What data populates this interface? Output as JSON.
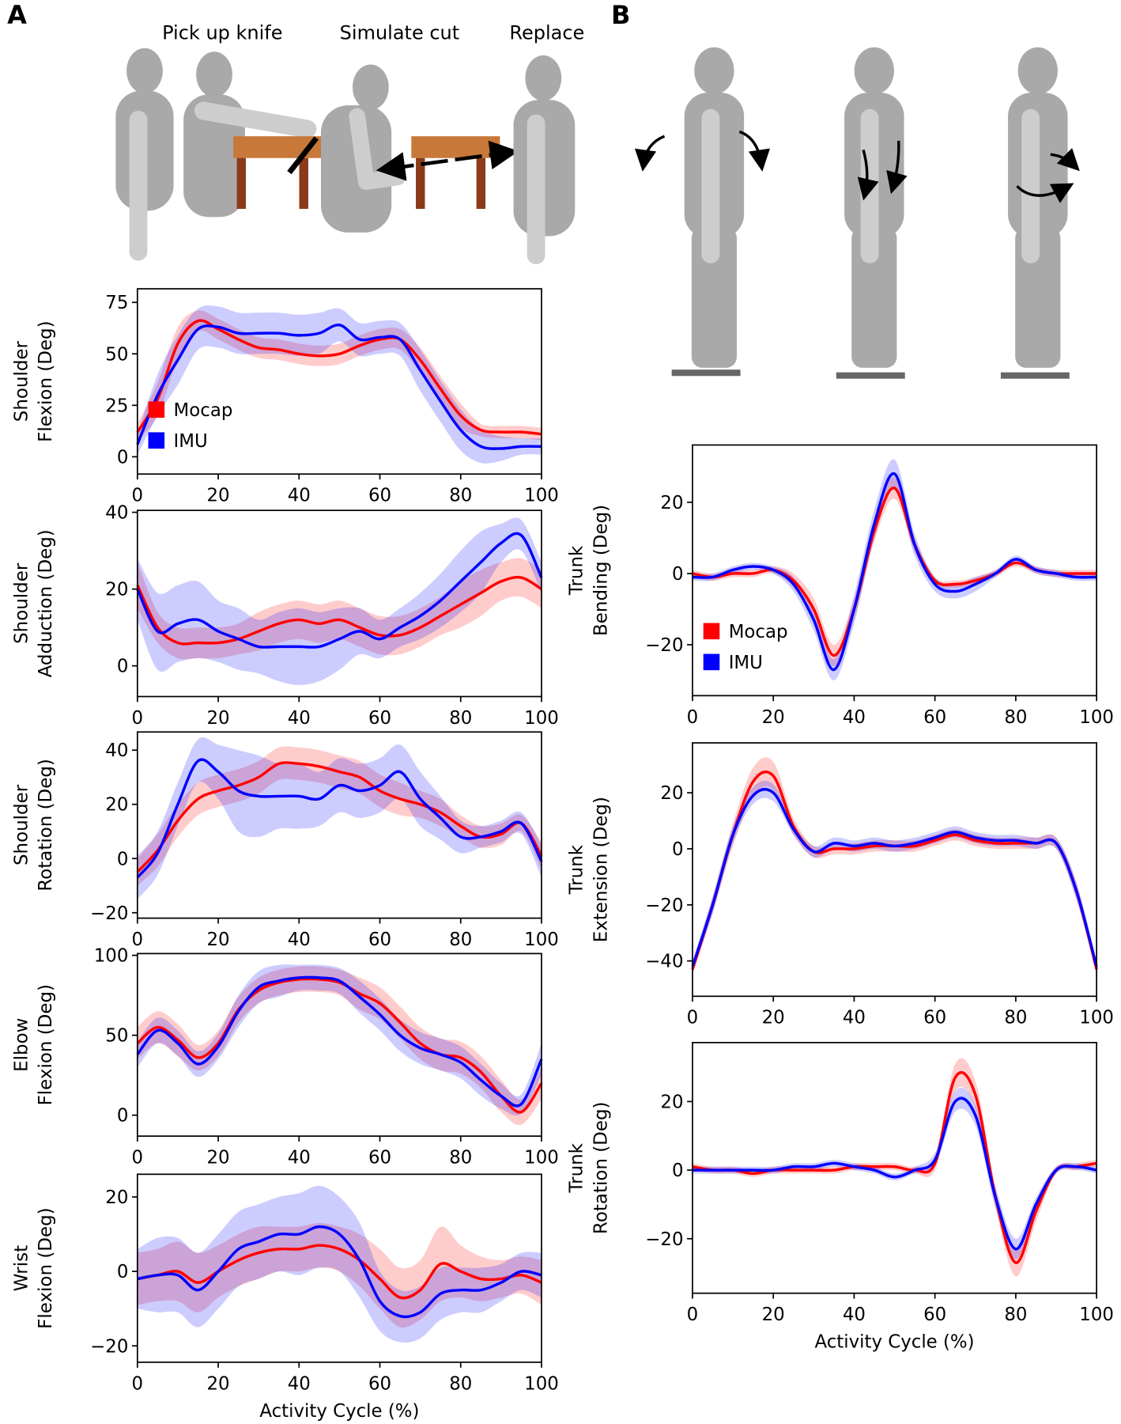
{
  "panel_labels": [
    "A",
    "B"
  ],
  "illustration": {
    "captions": [
      "Pick up knife",
      "Simulate cut",
      "Replace"
    ]
  },
  "chart_data": [
    {
      "type": "line",
      "ylabel": [
        "Shoulder",
        "Flexion (Deg)"
      ],
      "legend": "lower left",
      "x": [
        0,
        5,
        10,
        15,
        20,
        25,
        30,
        35,
        40,
        45,
        50,
        55,
        60,
        65,
        70,
        75,
        80,
        85,
        90,
        95,
        100
      ],
      "xlim": [
        0,
        100
      ],
      "xticks": [
        0,
        20,
        40,
        60,
        80,
        100
      ],
      "ylim": [
        -8.4,
        81.6
      ],
      "yticks": [
        0,
        25,
        50,
        75
      ],
      "series": [
        {
          "name": "Mocap",
          "color": "#ff0000",
          "values": [
            12,
            28,
            55,
            66,
            62,
            57,
            53,
            52,
            50,
            49,
            50,
            54,
            57,
            57,
            47,
            33,
            20,
            13,
            12,
            12,
            11
          ],
          "std": [
            4,
            8,
            8,
            5,
            5,
            5,
            5,
            5,
            5,
            5,
            5,
            5,
            5,
            5,
            6,
            6,
            6,
            3,
            3,
            3,
            3
          ]
        },
        {
          "name": "IMU",
          "color": "#0000ff",
          "values": [
            6,
            30,
            47,
            62,
            63,
            60,
            60,
            60,
            59,
            60,
            64,
            57,
            58,
            57,
            42,
            27,
            13,
            5,
            4,
            5,
            5
          ],
          "std": [
            5,
            10,
            12,
            10,
            10,
            10,
            10,
            10,
            10,
            10,
            8,
            8,
            8,
            8,
            10,
            10,
            10,
            8,
            6,
            4,
            4
          ]
        }
      ]
    },
    {
      "type": "line",
      "ylabel": [
        "Shoulder",
        "Adduction (Deg)"
      ],
      "x": [
        0,
        5,
        10,
        15,
        20,
        25,
        30,
        35,
        40,
        45,
        50,
        55,
        60,
        65,
        70,
        75,
        80,
        85,
        90,
        95,
        100
      ],
      "xlim": [
        0,
        100
      ],
      "xticks": [
        0,
        20,
        40,
        60,
        80,
        100
      ],
      "ylim": [
        -8,
        40.5
      ],
      "yticks": [
        0,
        20,
        40
      ],
      "series": [
        {
          "name": "Mocap",
          "color": "#ff0000",
          "values": [
            21,
            10,
            6,
            6,
            6,
            7,
            9,
            11,
            12,
            11,
            12,
            10,
            8,
            8,
            10,
            13,
            16,
            19,
            22,
            23,
            20
          ],
          "std": [
            6,
            4,
            4,
            4,
            4,
            4,
            5,
            5,
            5,
            5,
            5,
            5,
            5,
            5,
            5,
            5,
            6,
            6,
            5,
            5,
            5
          ]
        },
        {
          "name": "IMU",
          "color": "#0000ff",
          "values": [
            20,
            9,
            11,
            12,
            9,
            7,
            5,
            5,
            5,
            5,
            7,
            9,
            7,
            10,
            13,
            17,
            22,
            27,
            32,
            34,
            23
          ],
          "std": [
            8,
            10,
            10,
            10,
            8,
            8,
            7,
            9,
            10,
            9,
            8,
            6,
            5,
            5,
            6,
            7,
            8,
            8,
            5,
            4,
            4
          ]
        }
      ]
    },
    {
      "type": "line",
      "ylabel": [
        "Shoulder",
        "Rotation (Deg)"
      ],
      "x": [
        0,
        5,
        10,
        15,
        20,
        25,
        30,
        35,
        40,
        45,
        50,
        55,
        60,
        65,
        70,
        75,
        80,
        85,
        90,
        95,
        100
      ],
      "xlim": [
        0,
        100
      ],
      "xticks": [
        0,
        20,
        40,
        60,
        80,
        100
      ],
      "ylim": [
        -22,
        46.7
      ],
      "yticks": [
        {
          "value": -20,
          "label": "−20"
        },
        0,
        20,
        40
      ],
      "series": [
        {
          "name": "Mocap",
          "color": "#ff0000",
          "values": [
            -5,
            3,
            14,
            22,
            25,
            27,
            30,
            35,
            35,
            34,
            32,
            30,
            25,
            22,
            20,
            17,
            12,
            8,
            9,
            13,
            1
          ],
          "std": [
            5,
            6,
            6,
            6,
            6,
            6,
            6,
            6,
            6,
            6,
            6,
            6,
            6,
            6,
            5,
            5,
            4,
            4,
            4,
            3,
            5
          ]
        },
        {
          "name": "IMU",
          "color": "#0000ff",
          "values": [
            -7,
            2,
            20,
            36,
            32,
            25,
            23,
            23,
            23,
            22,
            27,
            25,
            27,
            32,
            22,
            15,
            8,
            8,
            10,
            13,
            -1
          ],
          "std": [
            8,
            8,
            8,
            8,
            10,
            15,
            15,
            12,
            12,
            10,
            10,
            10,
            10,
            10,
            10,
            8,
            6,
            4,
            4,
            4,
            6
          ]
        }
      ]
    },
    {
      "type": "line",
      "ylabel": [
        "Elbow",
        "Flexion (Deg)"
      ],
      "x": [
        0,
        5,
        10,
        15,
        20,
        25,
        30,
        35,
        40,
        45,
        50,
        55,
        60,
        65,
        70,
        75,
        80,
        85,
        90,
        95,
        100
      ],
      "xlim": [
        0,
        100
      ],
      "xticks": [
        0,
        20,
        40,
        60,
        80,
        100
      ],
      "ylim": [
        -13.1,
        101.1
      ],
      "yticks": [
        0,
        50,
        100
      ],
      "series": [
        {
          "name": "Mocap",
          "color": "#ff0000",
          "values": [
            45,
            55,
            47,
            36,
            45,
            66,
            78,
            83,
            85,
            85,
            83,
            76,
            70,
            58,
            45,
            38,
            36,
            27,
            12,
            2,
            20
          ],
          "std": [
            10,
            10,
            10,
            8,
            8,
            8,
            8,
            8,
            8,
            8,
            8,
            10,
            10,
            10,
            10,
            10,
            10,
            10,
            10,
            8,
            10
          ]
        },
        {
          "name": "IMU",
          "color": "#0000ff",
          "values": [
            38,
            53,
            45,
            32,
            43,
            65,
            80,
            84,
            86,
            86,
            84,
            74,
            63,
            50,
            42,
            38,
            33,
            22,
            12,
            7,
            35
          ],
          "std": [
            8,
            8,
            8,
            8,
            8,
            10,
            10,
            10,
            8,
            8,
            8,
            10,
            10,
            10,
            10,
            10,
            10,
            10,
            8,
            6,
            10
          ]
        }
      ]
    },
    {
      "type": "line",
      "ylabel": [
        "Wrist",
        "Flexion (Deg)"
      ],
      "xlabel": "Activity Cycle (%)",
      "x": [
        0,
        5,
        10,
        15,
        20,
        25,
        30,
        35,
        40,
        45,
        50,
        55,
        60,
        65,
        70,
        75,
        80,
        85,
        90,
        95,
        100
      ],
      "xlim": [
        0,
        100
      ],
      "xticks": [
        0,
        20,
        40,
        60,
        80,
        100
      ],
      "ylim": [
        -24.4,
        26.1
      ],
      "yticks": [
        {
          "value": -20,
          "label": "−20"
        },
        0,
        20
      ],
      "series": [
        {
          "name": "Mocap",
          "color": "#ff0000",
          "values": [
            -2,
            -1,
            0,
            -3,
            0,
            3,
            5,
            6,
            6,
            7,
            6,
            3,
            -2,
            -7,
            -5,
            2,
            0,
            -2,
            -2,
            -1,
            -3
          ],
          "std": [
            7,
            7,
            8,
            8,
            7,
            7,
            7,
            6,
            6,
            6,
            6,
            7,
            8,
            8,
            8,
            10,
            7,
            6,
            5,
            5,
            6
          ]
        },
        {
          "name": "IMU",
          "color": "#0000ff",
          "values": [
            -2,
            -1,
            -1,
            -5,
            0,
            6,
            8,
            10,
            10,
            12,
            10,
            3,
            -8,
            -12,
            -11,
            -6,
            -5,
            -5,
            -3,
            0,
            -1
          ],
          "std": [
            8,
            10,
            10,
            10,
            10,
            10,
            10,
            10,
            11,
            11,
            10,
            10,
            8,
            7,
            7,
            7,
            6,
            6,
            5,
            5,
            6
          ]
        }
      ]
    },
    {
      "type": "line",
      "ylabel": [
        "Trunk",
        "Bending (Deg)"
      ],
      "legend": "lower left",
      "x": [
        0,
        5,
        10,
        15,
        20,
        25,
        30,
        35,
        40,
        45,
        50,
        55,
        60,
        65,
        70,
        75,
        80,
        85,
        90,
        95,
        100
      ],
      "xlim": [
        0,
        100
      ],
      "xticks": [
        0,
        20,
        40,
        60,
        80,
        100
      ],
      "ylim": [
        -34.3,
        36.1
      ],
      "yticks": [
        {
          "value": -20,
          "label": "−20"
        },
        0,
        20
      ],
      "series": [
        {
          "name": "Mocap",
          "color": "#ff0000",
          "values": [
            0,
            -1,
            0,
            0,
            1,
            -2,
            -10,
            -23,
            -10,
            12,
            24,
            8,
            -2,
            -3,
            -2,
            0,
            3,
            1,
            0,
            0,
            0
          ],
          "std": [
            1,
            1,
            1,
            1,
            1,
            2,
            3,
            3,
            3,
            3,
            3,
            2,
            1,
            1,
            1,
            1,
            1,
            1,
            1,
            1,
            1
          ]
        },
        {
          "name": "IMU",
          "color": "#0000ff",
          "values": [
            -1,
            -1,
            1,
            2,
            1,
            -3,
            -13,
            -27,
            -10,
            14,
            28,
            8,
            -3,
            -5,
            -3,
            0,
            4,
            1,
            0,
            -1,
            -1
          ],
          "std": [
            1,
            1,
            1,
            1,
            1,
            2,
            3,
            3,
            4,
            4,
            4,
            3,
            2,
            2,
            2,
            1,
            1,
            1,
            1,
            1,
            1
          ]
        }
      ]
    },
    {
      "type": "line",
      "ylabel": [
        "Trunk",
        "Extension (Deg)"
      ],
      "x": [
        0,
        5,
        10,
        15,
        20,
        25,
        30,
        35,
        40,
        45,
        50,
        55,
        60,
        65,
        70,
        75,
        80,
        85,
        90,
        95,
        100
      ],
      "xlim": [
        0,
        100
      ],
      "xticks": [
        0,
        20,
        40,
        60,
        80,
        100
      ],
      "ylim": [
        -52.6,
        37.8
      ],
      "yticks": [
        {
          "value": -40,
          "label": "−40"
        },
        {
          "value": -20,
          "label": "−20"
        },
        0,
        20
      ],
      "series": [
        {
          "name": "Mocap",
          "color": "#ff0000",
          "values": [
            -43,
            -20,
            5,
            24,
            26,
            8,
            -1,
            0,
            0,
            1,
            1,
            1,
            3,
            5,
            3,
            2,
            2,
            2,
            2,
            -15,
            -43
          ],
          "std": [
            2,
            3,
            4,
            5,
            5,
            3,
            2,
            2,
            2,
            2,
            2,
            2,
            2,
            2,
            2,
            2,
            2,
            2,
            2,
            3,
            2
          ]
        },
        {
          "name": "IMU",
          "color": "#0000ff",
          "values": [
            -42,
            -20,
            5,
            19,
            20,
            7,
            -1,
            2,
            1,
            2,
            1,
            2,
            4,
            6,
            4,
            3,
            3,
            2,
            2,
            -15,
            -42
          ],
          "std": [
            2,
            3,
            3,
            3,
            3,
            2,
            2,
            2,
            2,
            2,
            2,
            2,
            2,
            2,
            2,
            2,
            2,
            2,
            2,
            3,
            2
          ]
        }
      ]
    },
    {
      "type": "line",
      "ylabel": [
        "Trunk",
        "Rotation (Deg)"
      ],
      "xlabel": "Activity Cycle (%)",
      "x": [
        0,
        5,
        10,
        15,
        20,
        25,
        30,
        35,
        40,
        45,
        50,
        55,
        60,
        65,
        70,
        75,
        80,
        85,
        90,
        95,
        100
      ],
      "xlim": [
        0,
        100
      ],
      "xticks": [
        0,
        20,
        40,
        60,
        80,
        100
      ],
      "ylim": [
        -35.9,
        37.2
      ],
      "yticks": [
        {
          "value": -20,
          "label": "−20"
        },
        0,
        20
      ],
      "series": [
        {
          "name": "Mocap",
          "color": "#ff0000",
          "values": [
            1,
            0,
            0,
            -1,
            0,
            0,
            0,
            0,
            1,
            1,
            1,
            0,
            2,
            27,
            22,
            -8,
            -27,
            -12,
            0,
            1,
            2
          ],
          "std": [
            1,
            1,
            1,
            1,
            1,
            1,
            1,
            1,
            1,
            1,
            1,
            1,
            2,
            4,
            4,
            3,
            4,
            3,
            1,
            1,
            1
          ]
        },
        {
          "name": "IMU",
          "color": "#0000ff",
          "values": [
            0,
            0,
            0,
            0,
            0,
            1,
            1,
            2,
            1,
            0,
            -2,
            0,
            3,
            20,
            16,
            -8,
            -23,
            -10,
            0,
            1,
            0
          ],
          "std": [
            1,
            1,
            1,
            1,
            1,
            1,
            1,
            1,
            1,
            1,
            1,
            1,
            2,
            3,
            3,
            3,
            3,
            2,
            1,
            1,
            1
          ]
        }
      ]
    }
  ]
}
